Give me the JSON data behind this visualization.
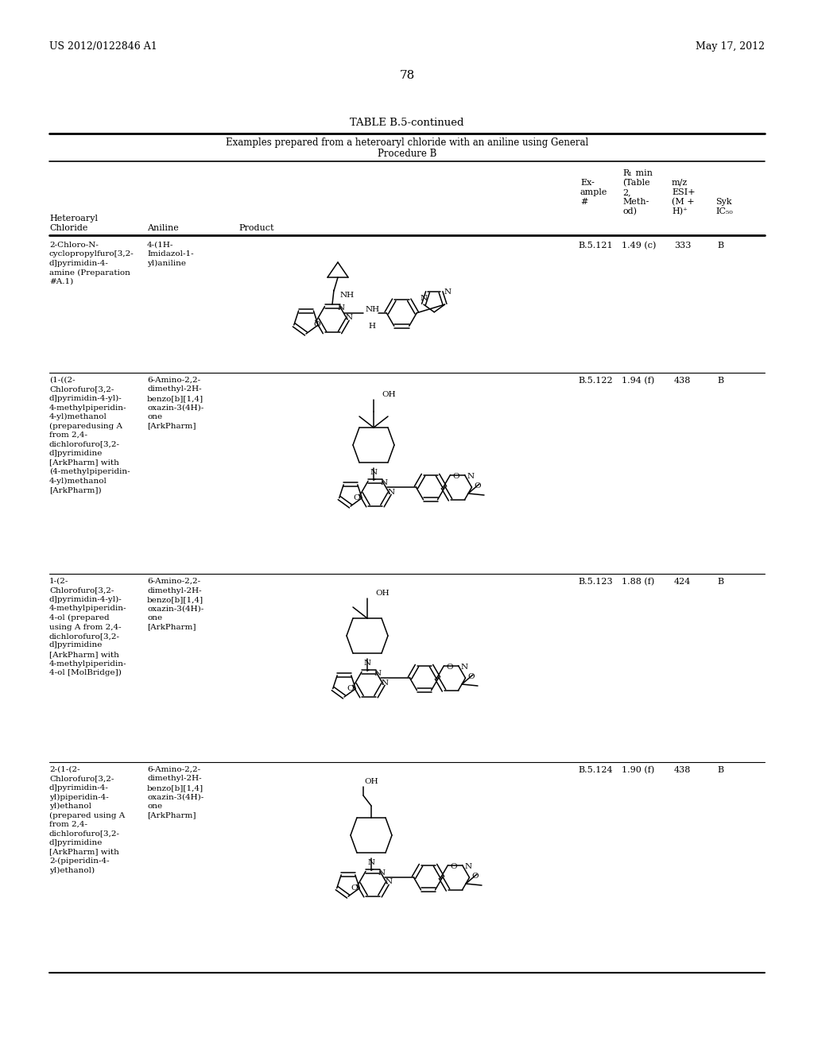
{
  "page_left_header": "US 2012/0122846 A1",
  "page_right_header": "May 17, 2012",
  "page_number": "78",
  "table_title": "TABLE B.5-continued",
  "table_subtitle_line1": "Examples prepared from a heteroaryl chloride with an aniline using General",
  "table_subtitle_line2": "Procedure B",
  "background_color": "#ffffff",
  "rows": [
    {
      "hc_lines": [
        "2-Chloro-N-",
        "cyclopropylfuro[3,2-",
        "d]pyrimidin-4-",
        "amine (Preparation",
        "#A.1)"
      ],
      "an_lines": [
        "4-(1H-",
        "Imidazol-1-",
        "yl)aniline"
      ],
      "example": "B.5.121",
      "rt": "1.49 (c)",
      "mz": "333",
      "syk": "B"
    },
    {
      "hc_lines": [
        "(1-((2-",
        "Chlorofuro[3,2-",
        "d]pyrimidin-4-yl)-",
        "4-methylpiperidin-",
        "4-yl)methanol",
        "(preparedusing A",
        "from 2,4-",
        "dichlorofuro[3,2-",
        "d]pyrimidine",
        "[ArkPharm] with",
        "(4-methylpiperidin-",
        "4-yl)methanol",
        "[ArkPharm])"
      ],
      "an_lines": [
        "6-Amino-2,2-",
        "dimethyl-2H-",
        "benzo[b][1,4]",
        "oxazin-3(4H)-",
        "one",
        "[ArkPharm]"
      ],
      "example": "B.5.122",
      "rt": "1.94 (f)",
      "mz": "438",
      "syk": "B"
    },
    {
      "hc_lines": [
        "1-(2-",
        "Chlorofuro[3,2-",
        "d]pyrimidin-4-yl)-",
        "4-methylpiperidin-",
        "4-ol (prepared",
        "using A from 2,4-",
        "dichlorofuro[3,2-",
        "d]pyrimidine",
        "[ArkPharm] with",
        "4-methylpiperidin-",
        "4-ol [MolBridge])"
      ],
      "an_lines": [
        "6-Amino-2,2-",
        "dimethyl-2H-",
        "benzo[b][1,4]",
        "oxazin-3(4H)-",
        "one",
        "[ArkPharm]"
      ],
      "example": "B.5.123",
      "rt": "1.88 (f)",
      "mz": "424",
      "syk": "B"
    },
    {
      "hc_lines": [
        "2-(1-(2-",
        "Chlorofuro[3,2-",
        "d]pyrimidin-4-",
        "yl)piperidin-4-",
        "yl)ethanol",
        "(prepared using A",
        "from 2,4-",
        "dichlorofuro[3,2-",
        "d]pyrimidine",
        "[ArkPharm] with",
        "2-(piperidin-4-",
        "yl)ethanol)"
      ],
      "an_lines": [
        "6-Amino-2,2-",
        "dimethyl-2H-",
        "benzo[b][1,4]",
        "oxazin-3(4H)-",
        "one",
        "[ArkPharm]"
      ],
      "example": "B.5.124",
      "rt": "1.90 (f)",
      "mz": "438",
      "syk": "B"
    }
  ]
}
